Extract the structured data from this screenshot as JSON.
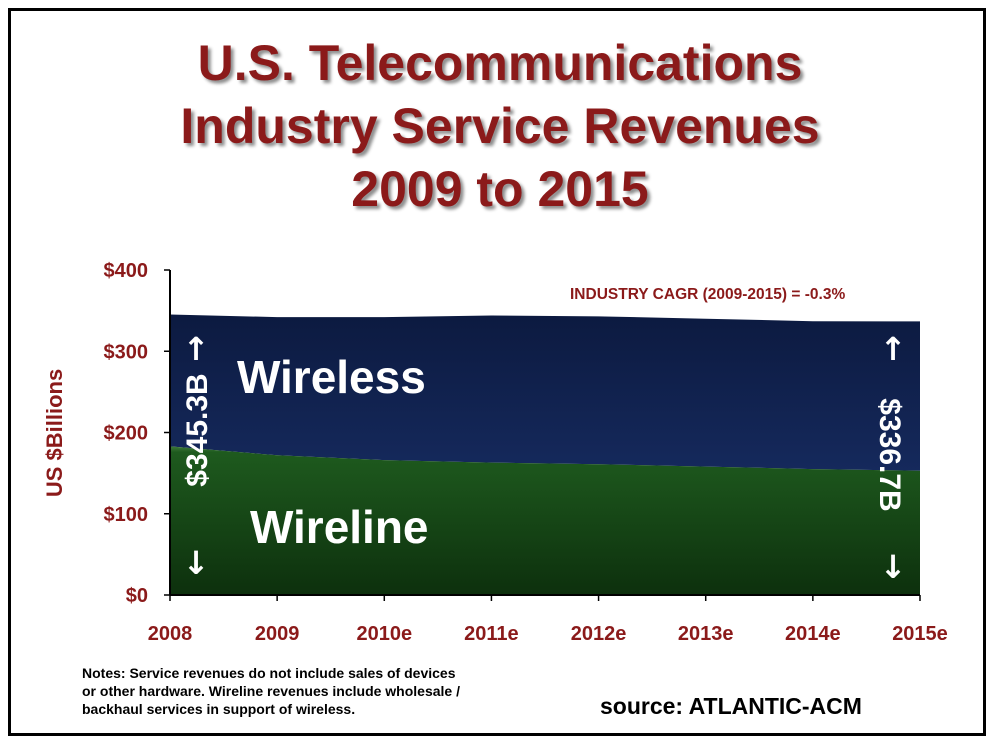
{
  "title": {
    "line1": "U.S. Telecommunications",
    "line2": "Industry Service Revenues",
    "line3": "2009 to 2015"
  },
  "chart_data": {
    "type": "area",
    "stacked": true,
    "x": [
      "2008",
      "2009",
      "2010e",
      "2011e",
      "2012e",
      "2013e",
      "2014e",
      "2015e"
    ],
    "ylabel": "US $Billions",
    "ylim": [
      0,
      400
    ],
    "yticks": [
      "$0",
      "$100",
      "$200",
      "$300",
      "$400"
    ],
    "yticks_values": [
      0,
      100,
      200,
      300,
      400
    ],
    "grid": false,
    "series": [
      {
        "name": "Wireline",
        "values": [
          183,
          172,
          166,
          163,
          161,
          158,
          155,
          153
        ],
        "color": "#123f12"
      },
      {
        "name": "Wireless",
        "values": [
          162.3,
          170,
          176,
          181,
          182,
          182,
          182,
          183.7
        ],
        "color": "#10224f"
      }
    ],
    "annotations": {
      "cagr": "INDUSTRY CAGR (2009-2015) = -0.3%",
      "start_total": "$345.3B",
      "end_total": "$336.7B",
      "arrow_up": "↑",
      "arrow_down": "↓"
    }
  },
  "notes": {
    "line1": "Notes:  Service revenues do not include sales of devices",
    "line2": "or other hardware.  Wireline revenues include wholesale /",
    "line3": "backhaul services in support of wireless."
  },
  "source": "source:  ATLANTIC-ACM",
  "colors": {
    "title": "#8b1a1a",
    "axis_labels": "#8b1a1a",
    "wireless": "#10224f",
    "wireline": "#123f12"
  }
}
